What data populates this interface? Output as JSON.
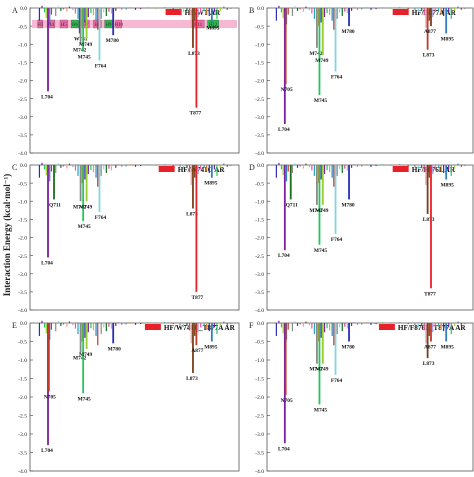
{
  "figure": {
    "ylabel": "Interaction Energy (kcal·mol⁻¹)",
    "colors": [
      "#2c2cb8",
      "#7a1fa0",
      "#22c55e",
      "#9acd32",
      "#2f7fbf",
      "#c0392b",
      "#8a8a8a",
      "#7fd7e0",
      "#1a6e1a",
      "#c94a9a",
      "#f0a0a0",
      "#7a3f1a",
      "#a3a3e0",
      "#ff4fa0",
      "#1fa8c0",
      "#e07b22"
    ],
    "ribbon_colors": {
      "pink": "#ee6aa7",
      "green": "#2db84d"
    }
  },
  "chart_data": [
    {
      "type": "bar",
      "panel": "A",
      "title": "HF/WT AR",
      "legend_color": "#e8202a",
      "ylim": [
        -4.0,
        0.0
      ],
      "yticks": [
        "0.0",
        "-0.5",
        "-1.0",
        "-1.5",
        "-2.0",
        "-2.5",
        "-3.0",
        "-3.5",
        "-4.0"
      ],
      "helices": [
        "H3",
        "H4",
        "H5",
        "H6",
        "H7",
        "H8",
        "H9",
        "H10",
        "H11",
        "H12"
      ],
      "labeled_residues": [
        {
          "name": "L704",
          "value": -2.3,
          "color": "#7a1fa0"
        },
        {
          "name": "W741",
          "value": -0.7,
          "color": "#2c2cb8"
        },
        {
          "name": "M742",
          "value": -1.0,
          "color": "#8a8a8a"
        },
        {
          "name": "M745",
          "value": -1.2,
          "color": "#22c55e"
        },
        {
          "name": "M749",
          "value": -0.85,
          "color": "#9acd32"
        },
        {
          "name": "F764",
          "value": -1.45,
          "color": "#7fd7e0"
        },
        {
          "name": "M780",
          "value": -0.75,
          "color": "#2c2cb8"
        },
        {
          "name": "L873",
          "value": -1.1,
          "color": "#7a3f1a"
        },
        {
          "name": "T877",
          "value": -2.75,
          "color": "#e8202a"
        },
        {
          "name": "M895",
          "value": -0.4,
          "color": "#2f7fbf"
        }
      ]
    },
    {
      "type": "bar",
      "panel": "B",
      "title": "HF/T877A AR",
      "legend_color": "#e8202a",
      "ylim": [
        -4.0,
        0.0
      ],
      "yticks": [
        "0.0",
        "-0.5",
        "-1.0",
        "-1.5",
        "-2.0",
        "-2.5",
        "-3.0",
        "-3.5",
        "-4.0"
      ],
      "labeled_residues": [
        {
          "name": "L704",
          "value": -3.2,
          "color": "#7a1fa0"
        },
        {
          "name": "N705",
          "value": -2.1,
          "color": "#c0392b"
        },
        {
          "name": "M742",
          "value": -1.1,
          "color": "#8a8a8a"
        },
        {
          "name": "M745",
          "value": -2.4,
          "color": "#22c55e"
        },
        {
          "name": "M749",
          "value": -1.3,
          "color": "#9acd32"
        },
        {
          "name": "F764",
          "value": -1.75,
          "color": "#7fd7e0"
        },
        {
          "name": "M780",
          "value": -0.5,
          "color": "#2c2cb8"
        },
        {
          "name": "L873",
          "value": -1.15,
          "color": "#c0392b"
        },
        {
          "name": "A877",
          "value": -0.5,
          "color": "#7a3f1a"
        },
        {
          "name": "M895",
          "value": -0.7,
          "color": "#2f7fbf"
        }
      ]
    },
    {
      "type": "bar",
      "panel": "C",
      "title": "HF/W741C AR",
      "legend_color": "#e8202a",
      "ylim": [
        -4.0,
        0.0
      ],
      "yticks": [
        "0.0",
        "-0.5",
        "-1.0",
        "-1.5",
        "-2.0",
        "-2.5",
        "-3.0",
        "-3.5",
        "-4.0"
      ],
      "labeled_residues": [
        {
          "name": "L704",
          "value": -2.55,
          "color": "#7a1fa0"
        },
        {
          "name": "Q711",
          "value": -0.95,
          "color": "#1a6e1a"
        },
        {
          "name": "M742",
          "value": -1.0,
          "color": "#8a8a8a"
        },
        {
          "name": "M745",
          "value": -1.55,
          "color": "#22c55e"
        },
        {
          "name": "M749",
          "value": -1.0,
          "color": "#9acd32"
        },
        {
          "name": "F764",
          "value": -1.3,
          "color": "#7fd7e0"
        },
        {
          "name": "L873",
          "value": -1.2,
          "color": "#7a3f1a"
        },
        {
          "name": "T877",
          "value": -3.5,
          "color": "#e8202a"
        },
        {
          "name": "M895",
          "value": -0.35,
          "color": "#2f7fbf"
        }
      ]
    },
    {
      "type": "bar",
      "panel": "D",
      "title": "HF/F876L AR",
      "legend_color": "#e8202a",
      "ylim": [
        -4.0,
        0.0
      ],
      "yticks": [
        "0.0",
        "-0.5",
        "-1.0",
        "-1.5",
        "-2.0",
        "-2.5",
        "-3.0",
        "-3.5",
        "-4.0"
      ],
      "labeled_residues": [
        {
          "name": "L704",
          "value": -2.35,
          "color": "#7a1fa0"
        },
        {
          "name": "Q711",
          "value": -0.95,
          "color": "#1a6e1a"
        },
        {
          "name": "M742",
          "value": -1.1,
          "color": "#8a8a8a"
        },
        {
          "name": "M745",
          "value": -2.2,
          "color": "#22c55e"
        },
        {
          "name": "M749",
          "value": -1.1,
          "color": "#9acd32"
        },
        {
          "name": "F764",
          "value": -1.9,
          "color": "#7fd7e0"
        },
        {
          "name": "M780",
          "value": -0.95,
          "color": "#2c2cb8"
        },
        {
          "name": "L873",
          "value": -1.35,
          "color": "#7a3f1a"
        },
        {
          "name": "T877",
          "value": -3.4,
          "color": "#e8202a"
        },
        {
          "name": "M895",
          "value": -0.4,
          "color": "#2f7fbf"
        }
      ]
    },
    {
      "type": "bar",
      "panel": "E",
      "title": "HF/W741C_T877A AR",
      "legend_color": "#e8202a",
      "ylim": [
        -4.0,
        0.0
      ],
      "yticks": [
        "0.0",
        "-0.5",
        "-1.0",
        "-1.5",
        "-2.0",
        "-2.5",
        "-3.0",
        "-3.5",
        "-4.0"
      ],
      "labeled_residues": [
        {
          "name": "L704",
          "value": -3.3,
          "color": "#7a1fa0"
        },
        {
          "name": "N705",
          "value": -1.85,
          "color": "#c0392b"
        },
        {
          "name": "M742",
          "value": -0.8,
          "color": "#8a8a8a"
        },
        {
          "name": "M745",
          "value": -1.9,
          "color": "#22c55e"
        },
        {
          "name": "M749",
          "value": -0.7,
          "color": "#9acd32"
        },
        {
          "name": "M780",
          "value": -0.55,
          "color": "#2c2cb8"
        },
        {
          "name": "L873",
          "value": -1.35,
          "color": "#7a3f1a"
        },
        {
          "name": "A877",
          "value": -0.6,
          "color": "#c0392b"
        },
        {
          "name": "M895",
          "value": -0.5,
          "color": "#2f7fbf"
        }
      ]
    },
    {
      "type": "bar",
      "panel": "F",
      "title": "HF/F876L_T877A AR",
      "legend_color": "#e8202a",
      "ylim": [
        -4.0,
        0.0
      ],
      "yticks": [
        "0.0",
        "-0.5",
        "-1.0",
        "-1.5",
        "-2.0",
        "-2.5",
        "-3.0",
        "-3.5",
        "-4.0"
      ],
      "labeled_residues": [
        {
          "name": "L704",
          "value": -3.25,
          "color": "#7a1fa0"
        },
        {
          "name": "N705",
          "value": -1.95,
          "color": "#c0392b"
        },
        {
          "name": "M742",
          "value": -1.1,
          "color": "#8a8a8a"
        },
        {
          "name": "M745",
          "value": -2.2,
          "color": "#22c55e"
        },
        {
          "name": "M749",
          "value": -1.1,
          "color": "#9acd32"
        },
        {
          "name": "F764",
          "value": -1.4,
          "color": "#7fd7e0"
        },
        {
          "name": "M780",
          "value": -0.5,
          "color": "#2c2cb8"
        },
        {
          "name": "L873",
          "value": -0.95,
          "color": "#7a3f1a"
        },
        {
          "name": "A877",
          "value": -0.5,
          "color": "#c0392b"
        },
        {
          "name": "M895",
          "value": -0.5,
          "color": "#2f7fbf"
        }
      ]
    }
  ]
}
